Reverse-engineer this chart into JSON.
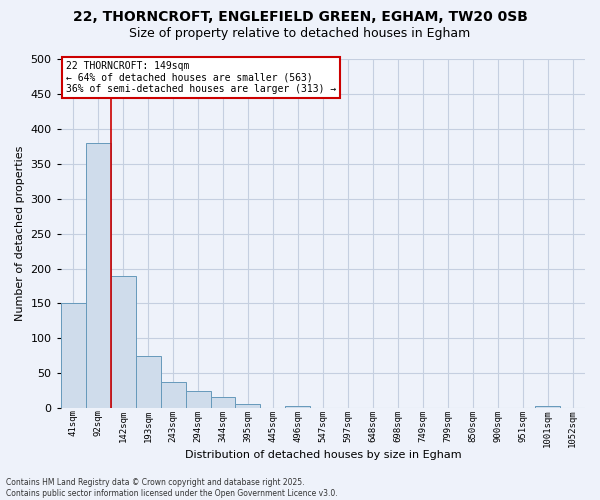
{
  "title_line1": "22, THORNCROFT, ENGLEFIELD GREEN, EGHAM, TW20 0SB",
  "title_line2": "Size of property relative to detached houses in Egham",
  "xlabel": "Distribution of detached houses by size in Egham",
  "ylabel": "Number of detached properties",
  "bar_labels": [
    "41sqm",
    "92sqm",
    "142sqm",
    "193sqm",
    "243sqm",
    "294sqm",
    "344sqm",
    "395sqm",
    "445sqm",
    "496sqm",
    "547sqm",
    "597sqm",
    "648sqm",
    "698sqm",
    "749sqm",
    "799sqm",
    "850sqm",
    "900sqm",
    "951sqm",
    "1001sqm",
    "1052sqm"
  ],
  "bar_values": [
    150,
    380,
    190,
    75,
    37,
    25,
    16,
    6,
    0,
    3,
    0,
    0,
    0,
    0,
    0,
    0,
    0,
    0,
    0,
    3,
    0
  ],
  "bar_color": "#cfdceb",
  "bar_edge_color": "#6699bb",
  "vline_x": 1.5,
  "vline_color": "#cc0000",
  "annotation_text": "22 THORNCROFT: 149sqm\n← 64% of detached houses are smaller (563)\n36% of semi-detached houses are larger (313) →",
  "annotation_box_color": "#cc0000",
  "annotation_bg": "white",
  "ylim": [
    0,
    500
  ],
  "yticks": [
    0,
    50,
    100,
    150,
    200,
    250,
    300,
    350,
    400,
    450,
    500
  ],
  "grid_color": "#c5cfe0",
  "background_color": "#eef2fa",
  "footer_line1": "Contains HM Land Registry data © Crown copyright and database right 2025.",
  "footer_line2": "Contains public sector information licensed under the Open Government Licence v3.0."
}
